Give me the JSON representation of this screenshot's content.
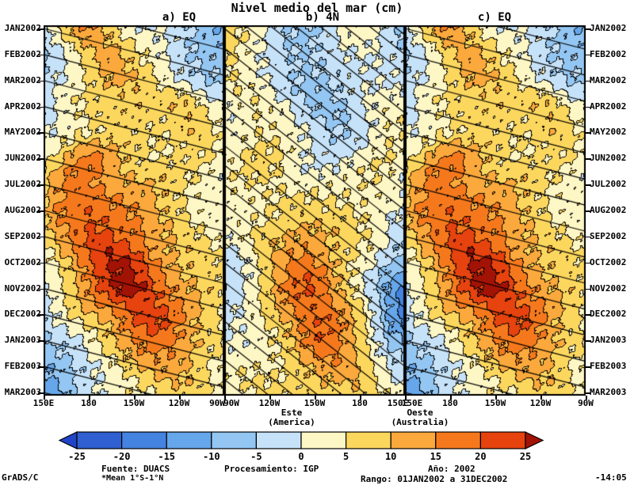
{
  "title": "Nivel medio del mar (cm)",
  "direction_labels": [
    {
      "line1": "Este",
      "line2": "(America)"
    },
    {
      "line1": "Oeste",
      "line2": "(Australia)"
    }
  ],
  "colorbar": {
    "tick_labels": [
      "-25",
      "-20",
      "-15",
      "-10",
      "-5",
      "0",
      "5",
      "10",
      "15",
      "20",
      "25"
    ]
  },
  "footer": {
    "source_label": "Fuente: DUACS",
    "source_note": "*Mean 1°S-1°N",
    "processing_label": "Procesamiento: IGP",
    "year_label": "Año: 2002",
    "range_label": "Rango: 01JAN2002 a 31DEC2002",
    "grads_label": "GrADS/C",
    "time_label": "-14:05"
  },
  "chart_data": {
    "type": "heatmap",
    "title": "Nivel medio del mar (cm)",
    "units": "cm",
    "ylabel": "",
    "grid": false,
    "y_categories": [
      "JAN2002",
      "FEB2002",
      "MAR2002",
      "APR2002",
      "MAY2002",
      "JUN2002",
      "JUL2002",
      "AUG2002",
      "SEP2002",
      "OCT2002",
      "NOV2002",
      "DEC2002",
      "JAN2003",
      "FEB2003",
      "MAR2003"
    ],
    "levels": [
      -25,
      -20,
      -15,
      -10,
      -5,
      0,
      5,
      10,
      15,
      20,
      25
    ],
    "band_colors": [
      "#2144c8",
      "#2f5fd0",
      "#4583e0",
      "#66a6ea",
      "#93c6f2",
      "#c6e2f8",
      "#fdf6c5",
      "#fcd75e",
      "#fba93c",
      "#f5791c",
      "#e6430e",
      "#a31305"
    ],
    "panels": [
      {
        "name": "a) EQ",
        "x_ticks": [
          "150E",
          "180",
          "150W",
          "120W",
          "90W"
        ],
        "guide_line_cross_months": 1.8,
        "guide_line_spacing_months": 1,
        "values": [
          [
            -4,
            6,
            13,
            15,
            9,
            4,
            1,
            -1,
            -3,
            -6,
            -9,
            -8
          ],
          [
            -7,
            -2,
            6,
            12,
            14,
            8,
            3,
            0,
            -2,
            -4,
            -6,
            -6
          ],
          [
            -5,
            -1,
            3,
            8,
            13,
            12,
            7,
            3,
            0,
            -2,
            -4,
            -4
          ],
          [
            -2,
            1,
            3,
            5,
            7,
            9,
            10,
            8,
            9,
            7,
            2,
            -1
          ],
          [
            1,
            3,
            4,
            4,
            5,
            6,
            7,
            7,
            8,
            9,
            6,
            2
          ],
          [
            4,
            8,
            13,
            16,
            14,
            10,
            7,
            6,
            5,
            5,
            4,
            3
          ],
          [
            7,
            14,
            18,
            17,
            14,
            12,
            10,
            8,
            6,
            5,
            4,
            3
          ],
          [
            9,
            16,
            19,
            21,
            18,
            15,
            12,
            9,
            7,
            5,
            4,
            3
          ],
          [
            6,
            11,
            17,
            22,
            23,
            20,
            16,
            11,
            8,
            6,
            5,
            4
          ],
          [
            3,
            8,
            13,
            19,
            24,
            26,
            22,
            16,
            11,
            8,
            6,
            4
          ],
          [
            0,
            5,
            10,
            16,
            22,
            28,
            27,
            21,
            15,
            10,
            7,
            5
          ],
          [
            -4,
            0,
            5,
            10,
            14,
            19,
            23,
            21,
            16,
            11,
            8,
            6
          ],
          [
            -7,
            -4,
            0,
            5,
            9,
            12,
            15,
            17,
            16,
            13,
            9,
            6
          ],
          [
            -12,
            -9,
            -5,
            0,
            4,
            6,
            9,
            10,
            11,
            9,
            6,
            4
          ],
          [
            -13,
            -11,
            -7,
            -3,
            1,
            4,
            6,
            6,
            7,
            6,
            4,
            3
          ]
        ]
      },
      {
        "name": "b) 4N",
        "x_ticks": [
          "90W",
          "120W",
          "150W",
          "180",
          "150E"
        ],
        "guide_line_cross_months": 5.5,
        "guide_line_spacing_months": 0.75,
        "values": [
          [
            7,
            4,
            1,
            -2,
            -4,
            -5,
            -3,
            0,
            2,
            1,
            -2,
            -5
          ],
          [
            5,
            4,
            2,
            -1,
            -4,
            -6,
            -5,
            -2,
            0,
            2,
            0,
            -3
          ],
          [
            4,
            3,
            2,
            0,
            -3,
            -6,
            -7,
            -5,
            -2,
            0,
            1,
            0
          ],
          [
            2,
            3,
            3,
            1,
            -1,
            -4,
            -6,
            -5,
            -3,
            0,
            2,
            2
          ],
          [
            3,
            4,
            5,
            3,
            1,
            -1,
            -3,
            -4,
            -2,
            0,
            3,
            3
          ],
          [
            3,
            5,
            6,
            5,
            3,
            1,
            0,
            -1,
            1,
            3,
            4,
            3
          ],
          [
            2,
            3,
            5,
            6,
            5,
            3,
            2,
            2,
            3,
            5,
            5,
            2
          ],
          [
            1,
            2,
            5,
            7,
            8,
            7,
            5,
            5,
            5,
            5,
            3,
            0
          ],
          [
            0,
            2,
            5,
            8,
            12,
            14,
            12,
            8,
            5,
            3,
            0,
            -4
          ],
          [
            -2,
            0,
            4,
            9,
            14,
            17,
            15,
            10,
            5,
            0,
            -6,
            -10
          ],
          [
            -3,
            0,
            4,
            10,
            17,
            21,
            18,
            12,
            5,
            -4,
            -13,
            -19
          ],
          [
            -3,
            -1,
            3,
            8,
            14,
            19,
            20,
            15,
            8,
            0,
            -10,
            -16
          ],
          [
            -1,
            1,
            3,
            6,
            10,
            15,
            18,
            15,
            10,
            4,
            -4,
            -9
          ],
          [
            2,
            3,
            4,
            5,
            8,
            10,
            12,
            12,
            10,
            6,
            1,
            -2
          ],
          [
            3,
            4,
            5,
            5,
            6,
            8,
            9,
            8,
            8,
            5,
            2,
            1
          ]
        ]
      },
      {
        "name": "c) EQ",
        "x_ticks": [
          "150E",
          "180",
          "150W",
          "120W",
          "90W"
        ],
        "guide_line_cross_months": 1.8,
        "guide_line_spacing_months": 1,
        "values_same_as_panel": 0
      }
    ]
  }
}
